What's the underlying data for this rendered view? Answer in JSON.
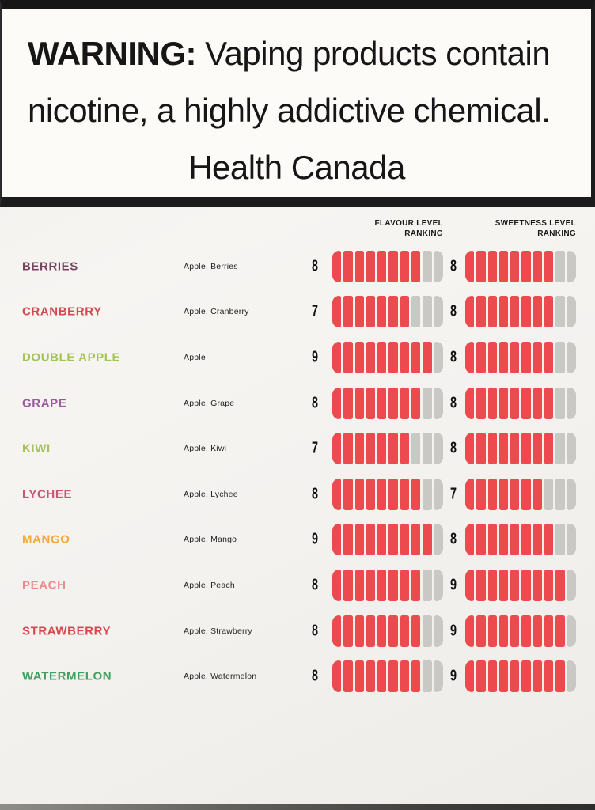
{
  "warning": {
    "prefix": "WARNING:",
    "line1_rest": " Vaping products contain",
    "line2": "nicotine, a highly addictive chemical.",
    "attribution": "Health Canada"
  },
  "chart": {
    "flavour_header": "FLAVOUR LEVEL\nRANKING",
    "sweetness_header": "SWEETNESS LEVEL\nRANKING"
  },
  "colors": {
    "bar_red": "#ec4a4e",
    "bar_gray": "#c9c8c4",
    "warning_text": "#161616"
  },
  "chart_data": {
    "type": "bar",
    "title": "",
    "xlabel": "",
    "ylabel": "",
    "scale_max": 10,
    "legend": [
      "FLAVOUR LEVEL RANKING",
      "SWEETNESS LEVEL RANKING"
    ],
    "categories": [
      "BERRIES",
      "CRANBERRY",
      "DOUBLE APPLE",
      "GRAPE",
      "KIWI",
      "LYCHEE",
      "MANGO",
      "PEACH",
      "STRAWBERRY",
      "WATERMELON"
    ],
    "series": [
      {
        "name": "FLAVOUR LEVEL RANKING",
        "values": [
          8,
          7,
          9,
          8,
          7,
          8,
          9,
          8,
          8,
          8
        ]
      },
      {
        "name": "SWEETNESS LEVEL RANKING",
        "values": [
          8,
          8,
          8,
          8,
          8,
          7,
          8,
          9,
          9,
          9
        ]
      }
    ],
    "rows": [
      {
        "name": "BERRIES",
        "color": "#75435f",
        "ingredients": "Apple, Berries",
        "flavour": 8,
        "sweetness": 8
      },
      {
        "name": "CRANBERRY",
        "color": "#d4484f",
        "ingredients": "Apple, Cranberry",
        "flavour": 7,
        "sweetness": 8
      },
      {
        "name": "DOUBLE APPLE",
        "color": "#a3c455",
        "ingredients": "Apple",
        "flavour": 9,
        "sweetness": 8
      },
      {
        "name": "GRAPE",
        "color": "#9a5a9e",
        "ingredients": "Apple, Grape",
        "flavour": 8,
        "sweetness": 8
      },
      {
        "name": "KIWI",
        "color": "#a6c358",
        "ingredients": "Apple, Kiwi",
        "flavour": 7,
        "sweetness": 8
      },
      {
        "name": "LYCHEE",
        "color": "#cc5470",
        "ingredients": "Apple, Lychee",
        "flavour": 8,
        "sweetness": 7
      },
      {
        "name": "MANGO",
        "color": "#f2a93f",
        "ingredients": "Apple, Mango",
        "flavour": 9,
        "sweetness": 8
      },
      {
        "name": "PEACH",
        "color": "#ec8a90",
        "ingredients": "Apple, Peach",
        "flavour": 8,
        "sweetness": 9
      },
      {
        "name": "STRAWBERRY",
        "color": "#d8484e",
        "ingredients": "Apple, Strawberry",
        "flavour": 8,
        "sweetness": 9
      },
      {
        "name": "WATERMELON",
        "color": "#3f9f5e",
        "ingredients": "Apple, Watermelon",
        "flavour": 8,
        "sweetness": 9
      }
    ]
  }
}
